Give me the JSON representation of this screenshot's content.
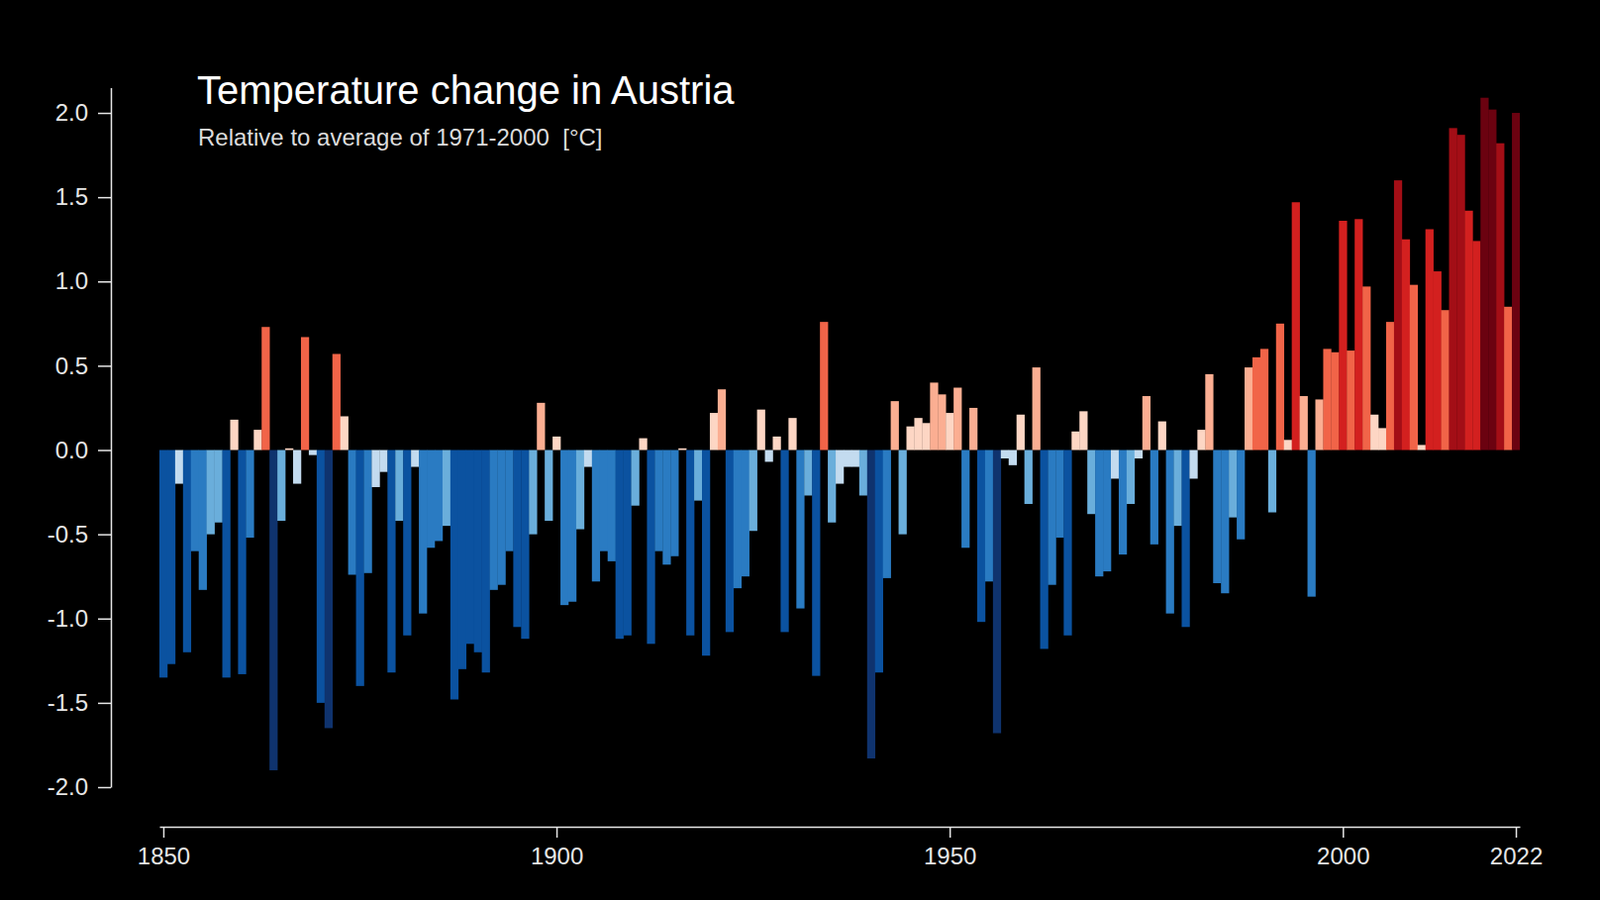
{
  "chart_data": {
    "type": "bar",
    "title": "Temperature change in Austria",
    "subtitle": "Relative to average of 1971-2000  [°C]",
    "x": [
      1850,
      1851,
      1852,
      1853,
      1854,
      1855,
      1856,
      1857,
      1858,
      1859,
      1860,
      1861,
      1862,
      1863,
      1864,
      1865,
      1866,
      1867,
      1868,
      1869,
      1870,
      1871,
      1872,
      1873,
      1874,
      1875,
      1876,
      1877,
      1878,
      1879,
      1880,
      1881,
      1882,
      1883,
      1884,
      1885,
      1886,
      1887,
      1888,
      1889,
      1890,
      1891,
      1892,
      1893,
      1894,
      1895,
      1896,
      1897,
      1898,
      1899,
      1900,
      1901,
      1902,
      1903,
      1904,
      1905,
      1906,
      1907,
      1908,
      1909,
      1910,
      1911,
      1912,
      1913,
      1914,
      1915,
      1916,
      1917,
      1918,
      1919,
      1920,
      1921,
      1922,
      1923,
      1924,
      1925,
      1926,
      1927,
      1928,
      1929,
      1930,
      1931,
      1932,
      1933,
      1934,
      1935,
      1936,
      1937,
      1938,
      1939,
      1940,
      1941,
      1942,
      1943,
      1944,
      1945,
      1946,
      1947,
      1948,
      1949,
      1950,
      1951,
      1952,
      1953,
      1954,
      1955,
      1956,
      1957,
      1958,
      1959,
      1960,
      1961,
      1962,
      1963,
      1964,
      1965,
      1966,
      1967,
      1968,
      1969,
      1970,
      1971,
      1972,
      1973,
      1974,
      1975,
      1976,
      1977,
      1978,
      1979,
      1980,
      1981,
      1982,
      1983,
      1984,
      1985,
      1986,
      1987,
      1988,
      1989,
      1990,
      1991,
      1992,
      1993,
      1994,
      1995,
      1996,
      1997,
      1998,
      1999,
      2000,
      2001,
      2002,
      2003,
      2004,
      2005,
      2006,
      2007,
      2008,
      2009,
      2010,
      2011,
      2012,
      2013,
      2014,
      2015,
      2016,
      2017,
      2018,
      2019,
      2020,
      2021,
      2022
    ],
    "values": [
      -1.35,
      -1.27,
      -0.2,
      -1.2,
      -0.6,
      -0.83,
      -0.5,
      -0.43,
      -1.35,
      0.18,
      -1.33,
      -0.52,
      0.12,
      0.73,
      -1.9,
      -0.42,
      0.01,
      -0.2,
      0.67,
      -0.03,
      -1.5,
      -1.65,
      0.57,
      0.2,
      -0.74,
      -1.4,
      -0.73,
      -0.22,
      -0.13,
      -1.32,
      -0.42,
      -1.1,
      -0.1,
      -0.97,
      -0.58,
      -0.54,
      -0.45,
      -1.48,
      -1.3,
      -1.15,
      -1.2,
      -1.32,
      -0.83,
      -0.8,
      -0.6,
      -1.05,
      -1.12,
      -0.5,
      0.28,
      -0.42,
      0.08,
      -0.92,
      -0.9,
      -0.47,
      -0.1,
      -0.78,
      -0.6,
      -0.66,
      -1.12,
      -1.1,
      -0.33,
      0.07,
      -1.15,
      -0.6,
      -0.68,
      -0.63,
      0.01,
      -1.1,
      -0.3,
      -1.22,
      0.22,
      0.36,
      -1.08,
      -0.82,
      -0.75,
      -0.48,
      0.24,
      -0.07,
      0.08,
      -1.08,
      0.19,
      -0.94,
      -0.27,
      -1.34,
      0.76,
      -0.43,
      -0.2,
      -0.1,
      -0.1,
      -0.27,
      -1.83,
      -1.32,
      -0.76,
      0.29,
      -0.5,
      0.14,
      0.19,
      0.16,
      0.4,
      0.33,
      0.22,
      0.37,
      -0.58,
      0.25,
      -1.02,
      -0.78,
      -1.68,
      -0.05,
      -0.09,
      0.21,
      -0.32,
      0.49,
      -1.18,
      -0.8,
      -0.52,
      -1.1,
      0.11,
      0.23,
      -0.38,
      -0.75,
      -0.72,
      -0.17,
      -0.62,
      -0.32,
      -0.05,
      0.32,
      -0.56,
      0.17,
      -0.97,
      -0.45,
      -1.05,
      -0.17,
      0.12,
      0.45,
      -0.79,
      -0.85,
      -0.4,
      -0.53,
      0.49,
      0.55,
      0.6,
      -0.37,
      0.75,
      0.06,
      1.47,
      0.32,
      -0.87,
      0.3,
      0.6,
      0.58,
      1.36,
      0.59,
      1.37,
      0.97,
      0.21,
      0.13,
      0.76,
      1.6,
      1.25,
      0.98,
      0.03,
      1.31,
      1.06,
      0.83,
      1.91,
      1.87,
      1.42,
      1.24,
      2.09,
      2.02,
      1.82,
      0.85,
      2.0
    ],
    "xlim": [
      1849.5,
      2022.5
    ],
    "xticks": [
      1850,
      1900,
      1950,
      2000,
      2022
    ],
    "ylim": [
      -2,
      2.15
    ],
    "yticks": [
      {
        "value": -2,
        "label": "-2.0"
      },
      -1.5,
      {
        "value": -1,
        "label": "-1.0"
      },
      -0.5,
      {
        "value": 0,
        "label": "0.0"
      },
      0.5,
      {
        "value": 1,
        "label": "1.0"
      },
      1.5,
      {
        "value": 2,
        "label": "2.0"
      }
    ]
  }
}
